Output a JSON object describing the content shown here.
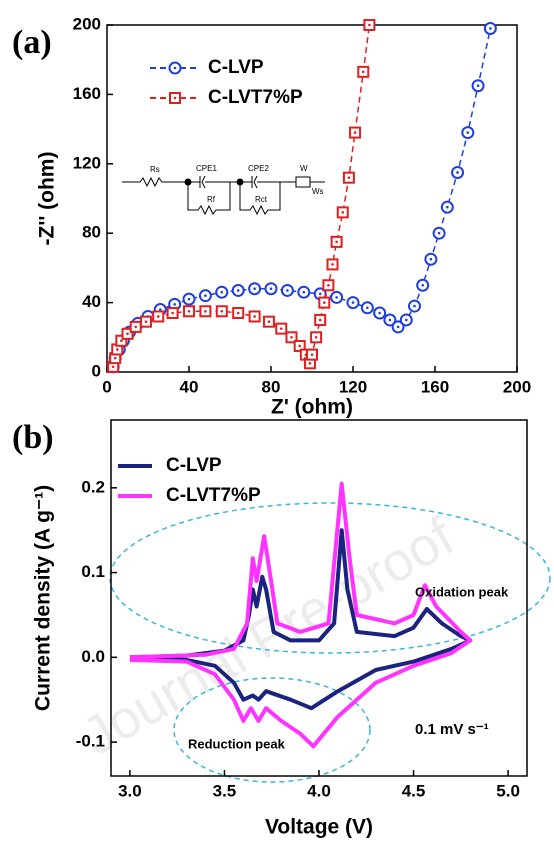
{
  "watermark": "Journal Pre-proof",
  "chart_data": [
    {
      "type": "scatter",
      "panel_label": "(a)",
      "x_label": "Z' (ohm)",
      "y_label": "-Z'' (ohm)",
      "xlim": [
        0,
        200
      ],
      "ylim": [
        0,
        200
      ],
      "xticks": [
        0,
        40,
        80,
        120,
        160,
        200
      ],
      "yticks": [
        0,
        40,
        80,
        120,
        160,
        200
      ],
      "circuit_labels": [
        "Rs",
        "CPE1",
        "CPE2",
        "W",
        "Rf",
        "Rct",
        "Ws"
      ],
      "series": [
        {
          "name": "C-LVP",
          "color": "#1f3fdc",
          "marker": "circle",
          "linestyle": "dashed",
          "x": [
            3,
            4,
            6,
            8,
            11,
            15,
            20,
            26,
            33,
            40,
            48,
            56,
            64,
            72,
            80,
            88,
            96,
            104,
            112,
            120,
            127,
            133,
            138,
            142,
            146,
            150,
            154,
            158,
            162,
            166,
            171,
            176,
            181,
            187
          ],
          "values": [
            3,
            8,
            13,
            18,
            23,
            28,
            32,
            36,
            39,
            42,
            44,
            46,
            47,
            48,
            48,
            47,
            46,
            45,
            43,
            40,
            37,
            34,
            30,
            26,
            30,
            38,
            50,
            65,
            80,
            95,
            115,
            138,
            165,
            198
          ]
        },
        {
          "name": "C-LVT7%P",
          "color": "#e02020",
          "marker": "square",
          "linestyle": "dashed",
          "x": [
            3,
            4,
            5,
            7,
            10,
            14,
            19,
            25,
            32,
            40,
            48,
            56,
            64,
            72,
            79,
            85,
            90,
            94,
            97,
            99,
            100,
            102,
            104,
            106,
            108,
            110,
            112,
            115,
            118,
            121,
            125,
            128
          ],
          "values": [
            3,
            8,
            13,
            18,
            22,
            26,
            29,
            32,
            34,
            35,
            35,
            35,
            34,
            32,
            29,
            25,
            20,
            15,
            10,
            5,
            10,
            20,
            30,
            40,
            50,
            62,
            75,
            92,
            112,
            138,
            173,
            200
          ]
        }
      ]
    },
    {
      "type": "line",
      "panel_label": "(b)",
      "x_label": "Voltage (V)",
      "y_label": "Current density (A g⁻¹)",
      "xlim": [
        2.9,
        5.1
      ],
      "ylim": [
        -0.14,
        0.28
      ],
      "xticks": [
        {
          "value": 3,
          "label": "3.0"
        },
        3.5,
        {
          "value": 4,
          "label": "4.0"
        },
        4.5,
        {
          "value": 5,
          "label": "5.0"
        }
      ],
      "yticks": [
        -0.1,
        {
          "value": 0,
          "label": "0.0"
        },
        0.1,
        0.2
      ],
      "annotations": [
        "Oxidation peak",
        "Reduction peak",
        "0.1 mV s⁻¹"
      ],
      "series": [
        {
          "name": "C-LVP",
          "color": "#1a237e",
          "x": [
            3.0,
            3.3,
            3.5,
            3.6,
            3.63,
            3.65,
            3.67,
            3.7,
            3.72,
            3.76,
            3.85,
            4.0,
            4.08,
            4.12,
            4.15,
            4.2,
            4.4,
            4.5,
            4.57,
            4.65,
            4.75,
            4.8,
            4.7,
            4.5,
            4.3,
            4.1,
            3.96,
            3.85,
            3.72,
            3.68,
            3.65,
            3.6,
            3.55,
            3.45,
            3.3,
            3.0
          ],
          "values": [
            0,
            0.002,
            0.008,
            0.02,
            0.05,
            0.08,
            0.06,
            0.095,
            0.08,
            0.03,
            0.02,
            0.02,
            0.04,
            0.15,
            0.08,
            0.03,
            0.025,
            0.035,
            0.057,
            0.04,
            0.025,
            0.02,
            0.01,
            -0.005,
            -0.015,
            -0.04,
            -0.06,
            -0.05,
            -0.04,
            -0.05,
            -0.045,
            -0.05,
            -0.03,
            -0.01,
            -0.003,
            -0.002
          ]
        },
        {
          "name": "C-LVT7%P",
          "color": "#ff33ff",
          "x": [
            3.0,
            3.4,
            3.55,
            3.62,
            3.65,
            3.67,
            3.71,
            3.74,
            3.78,
            3.9,
            4.05,
            4.12,
            4.16,
            4.2,
            4.4,
            4.5,
            4.56,
            4.62,
            4.75,
            4.8,
            4.7,
            4.5,
            4.3,
            4.1,
            3.97,
            3.9,
            3.8,
            3.72,
            3.68,
            3.64,
            3.6,
            3.55,
            3.45,
            3.3,
            3.0
          ],
          "values": [
            0,
            0.003,
            0.01,
            0.04,
            0.117,
            0.09,
            0.143,
            0.1,
            0.04,
            0.03,
            0.04,
            0.205,
            0.12,
            0.05,
            0.04,
            0.05,
            0.085,
            0.06,
            0.03,
            0.02,
            0.005,
            -0.01,
            -0.03,
            -0.07,
            -0.105,
            -0.09,
            -0.075,
            -0.06,
            -0.075,
            -0.06,
            -0.075,
            -0.05,
            -0.02,
            -0.005,
            -0.003
          ]
        }
      ]
    }
  ]
}
